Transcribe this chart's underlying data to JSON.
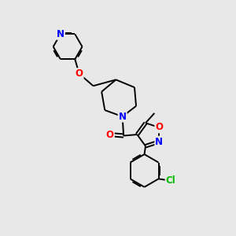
{
  "background_color": "#e8e8e8",
  "atom_colors": {
    "N": "#0000ff",
    "O": "#ff0000",
    "Cl": "#00bb00",
    "C": "#000000"
  },
  "bond_color": "#000000",
  "bond_width": 1.4,
  "figsize": [
    3.0,
    3.0
  ],
  "dpi": 100,
  "xlim": [
    0,
    10
  ],
  "ylim": [
    0,
    10
  ]
}
